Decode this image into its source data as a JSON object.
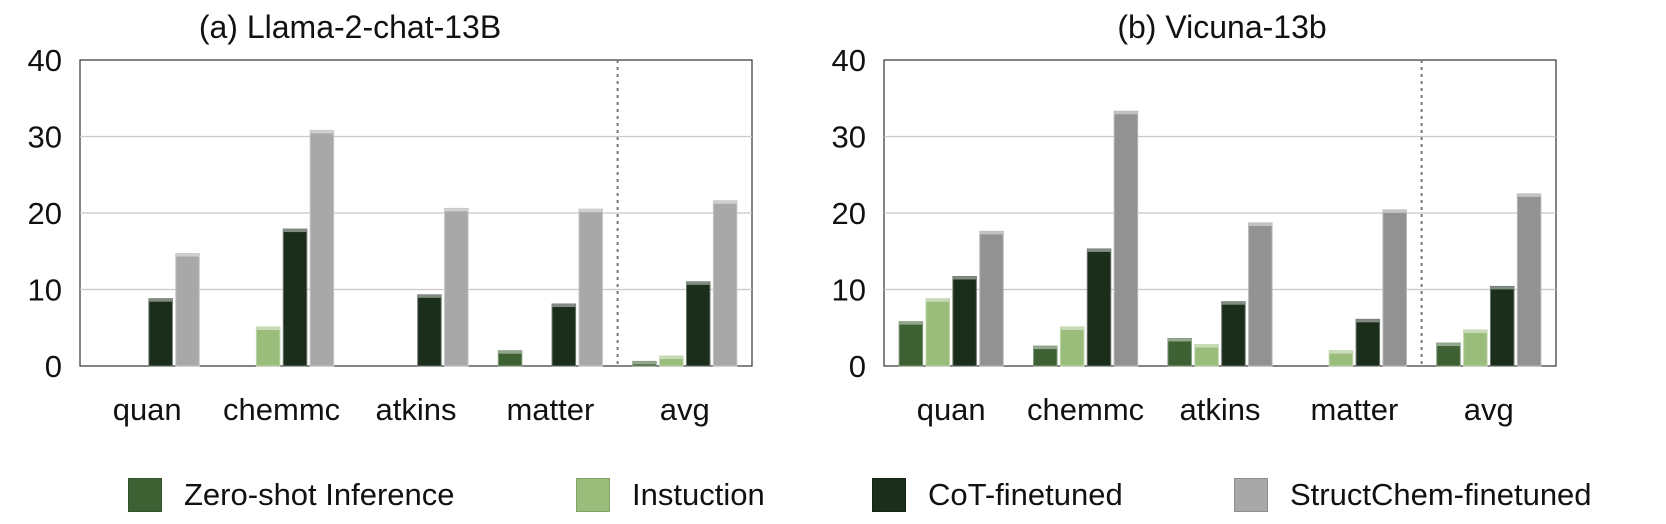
{
  "chart_data": [
    {
      "type": "bar",
      "title": "(a) Llama-2-chat-13B",
      "categories": [
        "quan",
        "chemmc",
        "atkins",
        "matter",
        "avg"
      ],
      "ylim": [
        0,
        40
      ],
      "yticks": [
        0,
        10,
        20,
        30,
        40
      ],
      "grid": true,
      "separator_before": "avg",
      "series": [
        {
          "name": "Zero-shot Inference",
          "values": [
            0,
            0,
            0,
            2,
            0.6
          ]
        },
        {
          "name": "Instuction",
          "values": [
            0,
            5.1,
            0,
            0,
            1.3
          ]
        },
        {
          "name": "CoT-finetuned",
          "values": [
            8.8,
            17.9,
            9.3,
            8.1,
            11
          ]
        },
        {
          "name": "StructChem-finetuned",
          "values": [
            14.7,
            30.8,
            20.6,
            20.5,
            21.6
          ]
        }
      ]
    },
    {
      "type": "bar",
      "title": "(b) Vicuna-13b",
      "categories": [
        "quan",
        "chemmc",
        "atkins",
        "matter",
        "avg"
      ],
      "ylim": [
        0,
        40
      ],
      "yticks": [
        0,
        10,
        20,
        30,
        40
      ],
      "grid": true,
      "separator_before": "avg",
      "series": [
        {
          "name": "Zero-shot Inference",
          "values": [
            5.8,
            2.6,
            3.6,
            0,
            3
          ]
        },
        {
          "name": "Instuction",
          "values": [
            8.8,
            5.1,
            2.8,
            2,
            4.7
          ]
        },
        {
          "name": "CoT-finetuned",
          "values": [
            11.7,
            15.3,
            8.4,
            6.1,
            10.4
          ]
        },
        {
          "name": "StructChem-finetuned",
          "values": [
            17.6,
            33.3,
            18.7,
            20.4,
            22.5
          ]
        }
      ]
    }
  ],
  "legend": [
    {
      "label": "Zero-shot Inference",
      "color": "#3d6133"
    },
    {
      "label": "Instuction",
      "color": "#9bbd7c"
    },
    {
      "label": "CoT-finetuned",
      "color": "#1b2d1b"
    },
    {
      "label": "StructChem-finetuned",
      "color": "#a8a8a8"
    }
  ],
  "panel_colors": [
    [
      "#3d6133",
      "#9bbd7c",
      "#1b2d1b",
      "#a8a8a8"
    ],
    [
      "#3d6133",
      "#9bbd7c",
      "#1b2d1b",
      "#929292"
    ]
  ]
}
